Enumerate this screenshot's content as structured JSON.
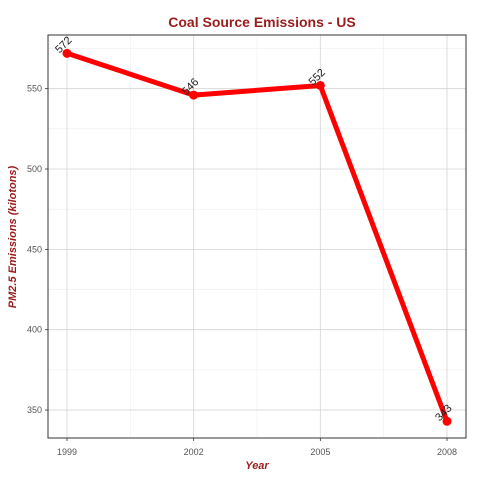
{
  "chart_data": {
    "type": "line",
    "title": "Coal Source Emissions - US",
    "xlabel": "Year",
    "ylabel": "PM2.5 Emissions (kilotons)",
    "x": [
      1999,
      2002,
      2005,
      2008
    ],
    "series": [
      {
        "values": [
          572,
          546,
          552,
          343
        ]
      }
    ],
    "data_labels": [
      "572",
      "546",
      "552",
      "343"
    ],
    "x_ticks": [
      1999,
      2002,
      2005,
      2008
    ],
    "y_ticks": [
      350,
      400,
      450,
      500,
      550
    ],
    "xlim": [
      1998.55,
      2008.45
    ],
    "ylim": [
      332.6,
      583.4
    ],
    "grid": true,
    "line_color": "#ff0000"
  }
}
